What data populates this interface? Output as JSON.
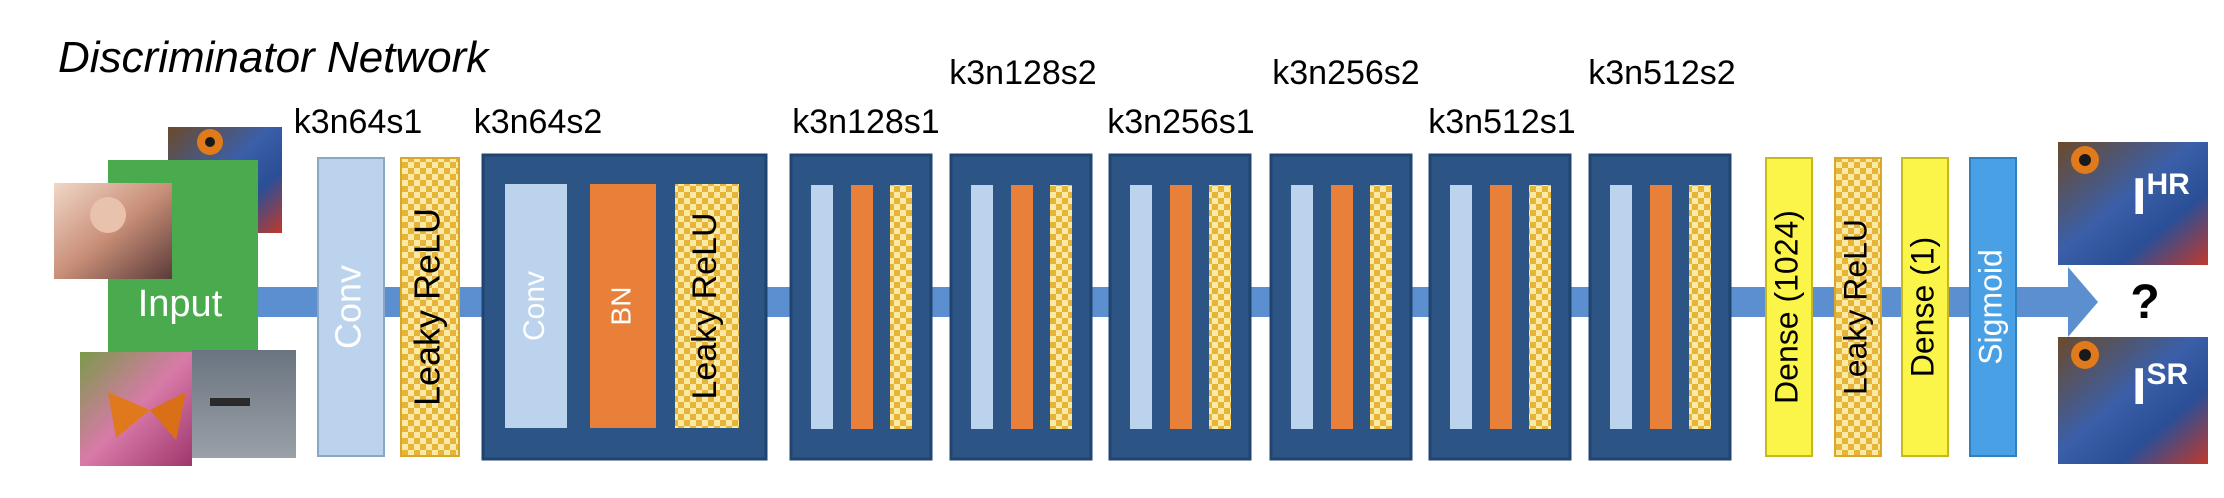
{
  "title": "Discriminator Network",
  "input_label": "Input",
  "conv_label": "Conv",
  "leaky_relu_label": "Leaky ReLU",
  "bn_label": "BN",
  "block_labels": [
    "k3n64s1",
    "k3n64s2",
    "k3n128s1",
    "k3n128s2",
    "k3n256s1",
    "k3n256s2",
    "k3n512s1",
    "k3n512s2"
  ],
  "dense_1024_label": "Dense (1024)",
  "dense_1_label": "Dense (1)",
  "sigmoid_label": "Sigmoid",
  "output_question": "?",
  "hr_label": {
    "base": "I",
    "sup": "HR"
  },
  "sr_label": {
    "base": "I",
    "sup": "SR"
  },
  "colors": {
    "block_dark": "#2c5585",
    "block_edge": "#1f4470",
    "conv_light": "#bcd3ee",
    "bn_orange": "#e8803a",
    "leaky_yellow": "#fbe9a6",
    "leaky_check": "#e8b438",
    "dense_yellow": "#fbf54a",
    "sigmoid_blue": "#4aa0e4",
    "input_green": "#4aab4e",
    "arrow_blue": "#5b8fcf"
  }
}
